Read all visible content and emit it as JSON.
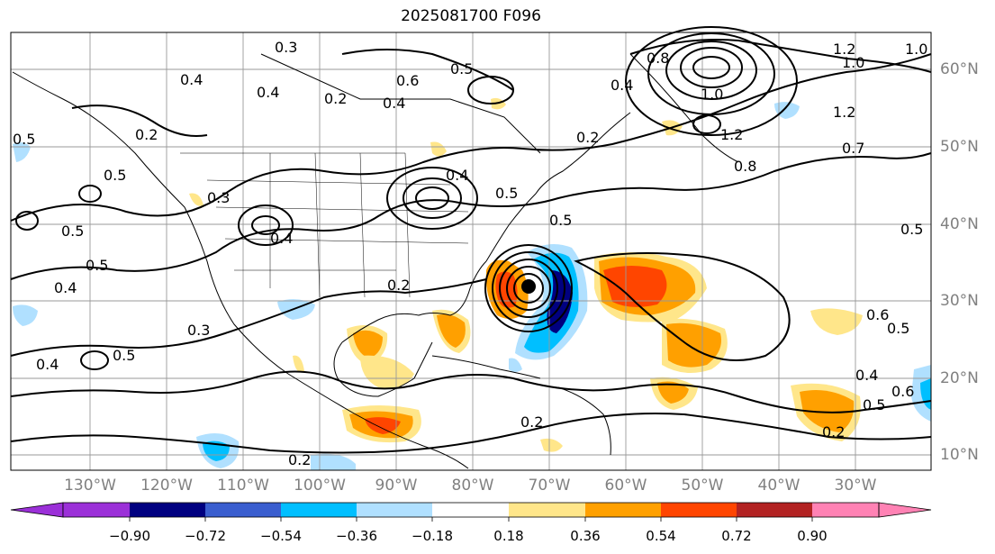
{
  "title": "2025081700 F096",
  "lat_labels": [
    "60°N",
    "50°N",
    "40°N",
    "30°N",
    "20°N",
    "10°N"
  ],
  "lon_labels": [
    "130°W",
    "120°W",
    "110°W",
    "100°W",
    "90°W",
    "80°W",
    "70°W",
    "60°W",
    "50°W",
    "40°W",
    "30°W"
  ],
  "colorbar": {
    "ticks": [
      "−0.90",
      "−0.72",
      "−0.54",
      "−0.36",
      "−0.18",
      "0.18",
      "0.36",
      "0.54",
      "0.72",
      "0.90"
    ],
    "colors": [
      "#9b30d8",
      "#000080",
      "#3a5ecf",
      "#00bfff",
      "#b0e0ff",
      "#ffffff",
      "#ffe68a",
      "#ffa000",
      "#ff4500",
      "#b22222",
      "#ff82b4"
    ]
  },
  "contour_labels": [
    "0.3",
    "0.4",
    "0.4",
    "0.2",
    "0.6",
    "0.5",
    "0.4",
    "0.5",
    "0.2",
    "0.5",
    "0.3",
    "0.4",
    "0.5",
    "0.5",
    "0.4",
    "0.3",
    "0.4",
    "0.5",
    "0.2",
    "0.2",
    "0.2",
    "0.5",
    "0.4",
    "0.5",
    "0.8",
    "1.0",
    "1.2",
    "1.2",
    "1.0",
    "1.2",
    "0.8",
    "0.7",
    "0.5",
    "0.6",
    "0.4",
    "0.6",
    "0.5",
    "0.2",
    "0.2",
    "0.4",
    "0.5",
    "1.0"
  ],
  "shading_colors": {
    "orange": "#ffa000",
    "red_orange": "#ff4500",
    "yellow": "#ffe68a",
    "light_blue": "#b0e0ff",
    "blue": "#00bfff",
    "dark_blue": "#000080"
  }
}
